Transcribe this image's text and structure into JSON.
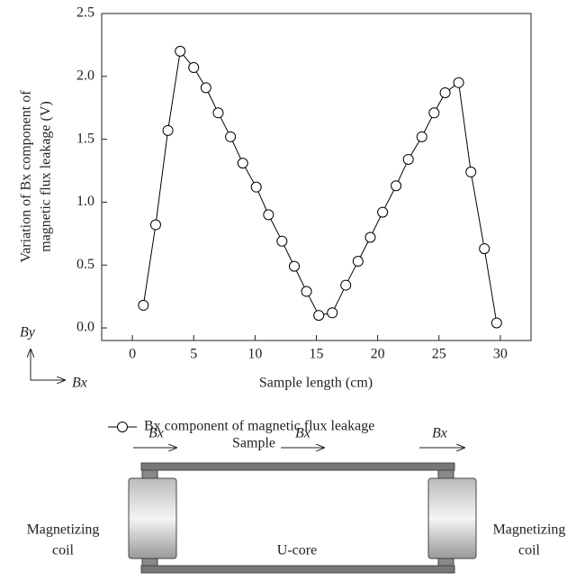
{
  "chart_data": {
    "type": "line",
    "xlabel": "Sample length (cm)",
    "ylabel": [
      "Variation of Bx component of",
      "magnetic flux leakage (V)"
    ],
    "xlim": [
      -2.5,
      32.5
    ],
    "ylim": [
      -0.1,
      2.5
    ],
    "xticks": [
      0,
      5,
      10,
      15,
      20,
      25,
      30
    ],
    "yticks": [
      {
        "value": 0,
        "label": "0.0"
      },
      0.5,
      {
        "value": 1,
        "label": "1.0"
      },
      1.5,
      {
        "value": 2,
        "label": "2.0"
      },
      2.5
    ],
    "series": [
      {
        "name": "Bx component of magnetic flux leakage",
        "color": "#000000",
        "x": [
          0.9,
          1.9,
          2.9,
          3.9,
          5.0,
          6.0,
          7.0,
          8.0,
          9.0,
          10.1,
          11.1,
          12.2,
          13.2,
          14.2,
          15.2,
          16.3,
          17.4,
          18.4,
          19.4,
          20.4,
          21.5,
          22.5,
          23.6,
          24.6,
          25.5,
          26.6,
          27.6,
          28.7,
          29.7
        ],
        "values": [
          0.18,
          0.82,
          1.57,
          2.2,
          2.07,
          1.91,
          1.71,
          1.52,
          1.31,
          1.12,
          0.9,
          0.69,
          0.49,
          0.29,
          0.1,
          0.12,
          0.34,
          0.53,
          0.72,
          0.92,
          1.13,
          1.34,
          1.52,
          1.71,
          1.87,
          1.95,
          1.24,
          0.63,
          0.04
        ]
      }
    ]
  },
  "axis_indicator": {
    "vertical": "By",
    "horizontal": "Bx"
  },
  "diagram": {
    "arrow_labels": [
      "Bx",
      "Bx",
      "Bx"
    ],
    "sample": "Sample",
    "core": "U-core",
    "left_coil": [
      "Magnetizing",
      "coil"
    ],
    "right_coil": [
      "Magnetizing",
      "coil"
    ]
  }
}
